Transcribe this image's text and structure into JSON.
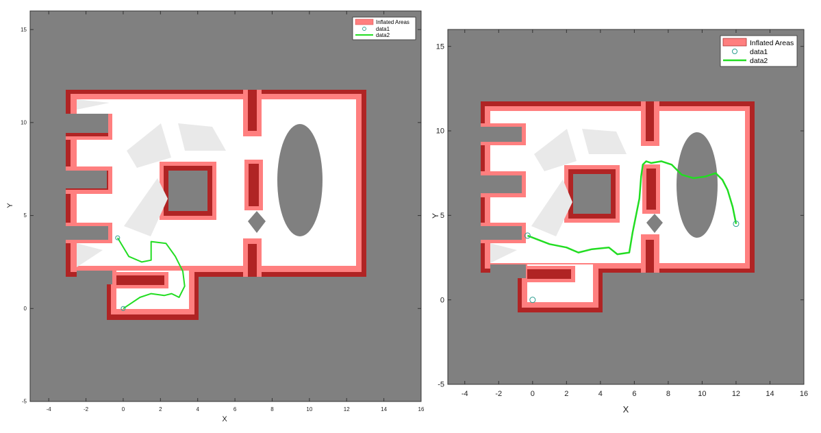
{
  "chart_data": [
    {
      "type": "occupancy-map",
      "xlabel": "X",
      "ylabel": "Y",
      "xlim": [
        -5,
        16
      ],
      "ylim": [
        -5,
        16
      ],
      "xticks": [
        "-4",
        "-2",
        "0",
        "2",
        "4",
        "6",
        "8",
        "10",
        "12",
        "14",
        "16"
      ],
      "yticks": [
        "-5",
        "0",
        "5",
        "10",
        "15"
      ],
      "legend": {
        "placement": "top-right",
        "entries": [
          "Inflated Areas",
          "data1",
          "data2"
        ]
      },
      "colors": {
        "background": "#808080",
        "free": "#ffffff",
        "inflated": "#ff7f7f",
        "occupied": "#b02424",
        "path": "#22dd22",
        "start_marker": "#2a9d8f"
      },
      "data1_points": [
        [
          -0.3,
          3.8
        ],
        [
          0,
          0
        ]
      ],
      "data2_path": {
        "x": [
          -0.3,
          0.3,
          1.0,
          1.5,
          1.5,
          2.3,
          2.8,
          3.2,
          3.3,
          3.0,
          2.6,
          2.2,
          1.5,
          0.9,
          0.3,
          0
        ],
        "y": [
          3.8,
          2.8,
          2.5,
          2.6,
          3.6,
          3.5,
          2.8,
          2.0,
          1.2,
          0.6,
          0.8,
          0.7,
          0.8,
          0.6,
          0.2,
          0
        ]
      }
    },
    {
      "type": "occupancy-map",
      "xlabel": "X",
      "ylabel": "Y",
      "xlim": [
        -5,
        16
      ],
      "ylim": [
        -5,
        16
      ],
      "xticks": [
        "-4",
        "-2",
        "0",
        "2",
        "4",
        "6",
        "8",
        "10",
        "12",
        "14",
        "16"
      ],
      "yticks": [
        "-5",
        "0",
        "5",
        "10",
        "15"
      ],
      "legend": {
        "placement": "top-right",
        "entries": [
          "Inflated Areas",
          "data1",
          "data2"
        ]
      },
      "colors": {
        "background": "#808080",
        "free": "#ffffff",
        "inflated": "#ff7f7f",
        "occupied": "#b02424",
        "path": "#22dd22",
        "start_marker": "#2a9d8f"
      },
      "data1_points": [
        [
          12,
          4.5
        ],
        [
          0,
          0
        ],
        [
          -0.3,
          3.8
        ]
      ],
      "data2_path": {
        "x": [
          -0.3,
          1.0,
          2.0,
          2.7,
          3.5,
          4.5,
          5.0,
          5.7,
          5.9,
          6.1,
          6.3,
          6.4,
          6.5,
          6.7,
          7.0,
          7.6,
          8.2,
          8.8,
          9.5,
          10.2,
          10.8,
          11.2,
          11.5,
          11.8,
          12.0
        ],
        "y": [
          3.8,
          3.3,
          3.1,
          2.8,
          3.0,
          3.1,
          2.7,
          2.8,
          4.0,
          5.0,
          6.0,
          7.3,
          8.0,
          8.2,
          8.1,
          8.2,
          8.0,
          7.4,
          7.2,
          7.3,
          7.5,
          7.1,
          6.5,
          5.5,
          4.5
        ]
      }
    }
  ]
}
